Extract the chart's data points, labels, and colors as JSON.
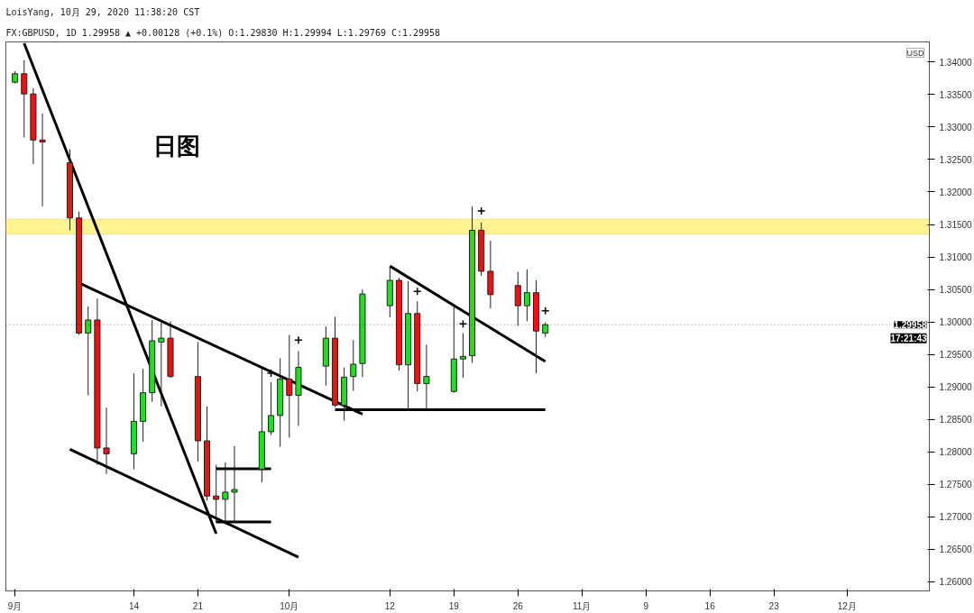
{
  "chart_data": {
    "type": "candlestick",
    "title": "LoisYang, 10月 29, 2020 11:38:20 CST",
    "subtitle": "FX:GBPUSD, 1D 1.29958 ▲ +0.00128 (+0.1%) O:1.29830 H:1.29994 L:1.29769 C:1.29958",
    "annotations": [
      "日图",
      "USD",
      "17:21:43"
    ],
    "x": [
      "2020-09-01",
      "2020-09-02",
      "2020-09-03",
      "2020-09-04",
      "2020-09-07",
      "2020-09-08",
      "2020-09-09",
      "2020-09-10",
      "2020-09-11",
      "2020-09-14",
      "2020-09-15",
      "2020-09-16",
      "2020-09-17",
      "2020-09-18",
      "2020-09-21",
      "2020-09-22",
      "2020-09-23",
      "2020-09-24",
      "2020-09-25",
      "2020-09-28",
      "2020-09-29",
      "2020-09-30",
      "2020-10-01",
      "2020-10-02",
      "2020-10-05",
      "2020-10-06",
      "2020-10-07",
      "2020-10-08",
      "2020-10-09",
      "2020-10-12",
      "2020-10-13",
      "2020-10-14",
      "2020-10-15",
      "2020-10-16",
      "2020-10-19",
      "2020-10-20",
      "2020-10-21",
      "2020-10-22",
      "2020-10-23",
      "2020-10-26",
      "2020-10-27",
      "2020-10-28",
      "2020-10-29"
    ],
    "ohlc": [
      [
        1.3369,
        1.3386,
        1.3367,
        1.3382
      ],
      [
        1.3382,
        1.3403,
        1.3284,
        1.3351
      ],
      [
        1.3351,
        1.336,
        1.3243,
        1.328
      ],
      [
        1.328,
        1.3321,
        1.3178,
        1.3277
      ],
      [
        1.3245,
        1.3266,
        1.3141,
        1.316
      ],
      [
        1.316,
        1.317,
        1.298,
        1.2983
      ],
      [
        1.2983,
        1.3024,
        1.2887,
        1.3003
      ],
      [
        1.3003,
        1.3036,
        1.278,
        1.2806
      ],
      [
        1.2806,
        1.2868,
        1.2766,
        1.2797
      ],
      [
        1.2797,
        1.2921,
        1.2773,
        1.2847
      ],
      [
        1.2847,
        1.2928,
        1.2816,
        1.2891
      ],
      [
        1.2891,
        1.3003,
        1.2877,
        1.2971
      ],
      [
        1.2969,
        1.2999,
        1.287,
        1.2975
      ],
      [
        1.2975,
        1.3001,
        1.2914,
        1.2916
      ],
      [
        1.2916,
        1.2969,
        1.2785,
        1.2817
      ],
      [
        1.2817,
        1.287,
        1.2725,
        1.2732
      ],
      [
        1.2732,
        1.278,
        1.2691,
        1.2727
      ],
      [
        1.2727,
        1.2784,
        1.2689,
        1.2738
      ],
      [
        1.2738,
        1.2809,
        1.2691,
        1.2742
      ],
      [
        1.2773,
        1.2932,
        1.2753,
        1.2831
      ],
      [
        1.2831,
        1.2907,
        1.2826,
        1.2856
      ],
      [
        1.2856,
        1.2944,
        1.2808,
        1.2912
      ],
      [
        1.2912,
        1.298,
        1.2822,
        1.2887
      ],
      [
        1.2887,
        1.2955,
        1.284,
        1.293
      ],
      [
        1.2932,
        1.2993,
        1.2902,
        1.2975
      ],
      [
        1.2975,
        1.3008,
        1.2869,
        1.2872
      ],
      [
        1.2872,
        1.293,
        1.2848,
        1.2915
      ],
      [
        1.2916,
        1.2972,
        1.2894,
        1.2935
      ],
      [
        1.2936,
        1.305,
        1.2915,
        1.3043
      ],
      [
        1.3025,
        1.3085,
        1.3007,
        1.3064
      ],
      [
        1.3064,
        1.3068,
        1.2925,
        1.2934
      ],
      [
        1.2934,
        1.3063,
        1.2865,
        1.3013
      ],
      [
        1.3013,
        1.3032,
        1.2893,
        1.2905
      ],
      [
        1.2905,
        1.2965,
        1.2865,
        1.2916
      ],
      [
        1.2893,
        1.3027,
        1.2891,
        1.2943
      ],
      [
        1.2943,
        1.2983,
        1.2914,
        1.2947
      ],
      [
        1.2948,
        1.3178,
        1.2937,
        1.3141
      ],
      [
        1.3141,
        1.3153,
        1.3071,
        1.3078
      ],
      [
        1.3078,
        1.3125,
        1.3021,
        1.3042
      ],
      [
        1.3056,
        1.3077,
        1.2994,
        1.3025
      ],
      [
        1.3025,
        1.3081,
        1.3001,
        1.3045
      ],
      [
        1.3045,
        1.3064,
        1.2921,
        1.2986
      ],
      [
        1.2983,
        1.29994,
        1.29769,
        1.29958
      ]
    ],
    "colors": [
      "#22dd22",
      "#ee1111",
      "#ee1111",
      "#ee1111",
      "#ee1111",
      "#ee1111",
      "#22dd22",
      "#ee1111",
      "#ee1111",
      "#22dd22",
      "#22dd22",
      "#22dd22",
      "#22dd22",
      "#ee1111",
      "#ee1111",
      "#ee1111",
      "#ee1111",
      "#22dd22",
      "#22dd22",
      "#22dd22",
      "#22dd22",
      "#22dd22",
      "#ee1111",
      "#22dd22",
      "#22dd22",
      "#ee1111",
      "#22dd22",
      "#22dd22",
      "#22dd22",
      "#22dd22",
      "#ee1111",
      "#22dd22",
      "#ee1111",
      "#22dd22",
      "#22dd22",
      "#22dd22",
      "#22dd22",
      "#ee1111",
      "#ee1111",
      "#ee1111",
      "#22dd22",
      "#ee1111",
      "#22dd22"
    ],
    "series": [
      {
        "type": "line",
        "color": "#000000",
        "x": [
          "2020-09-02",
          "2020-09-23"
        ],
        "values": [
          1.3429,
          1.2674
        ]
      },
      {
        "type": "line",
        "color": "#000000",
        "x": [
          "2020-09-08",
          "2020-10-09"
        ],
        "values": [
          1.306,
          1.2858
        ]
      },
      {
        "type": "line",
        "color": "#000000",
        "x": [
          "2020-09-07",
          "2020-10-02"
        ],
        "values": [
          1.2804,
          1.2638
        ]
      },
      {
        "type": "line",
        "color": "#000000",
        "x": [
          "2020-10-12",
          "2020-10-29"
        ],
        "values": [
          1.3086,
          1.2939
        ]
      },
      {
        "type": "line",
        "color": "#000000",
        "x": [
          "2020-10-06",
          "2020-10-29"
        ],
        "values": [
          1.2865,
          1.2865
        ]
      },
      {
        "type": "line",
        "color": "#000000",
        "x": [
          "2020-09-23",
          "2020-09-29"
        ],
        "values": [
          1.2774,
          1.2774
        ]
      },
      {
        "type": "line",
        "color": "#000000",
        "x": [
          "2020-09-23",
          "2020-09-29"
        ],
        "values": [
          1.2692,
          1.2692
        ]
      },
      {
        "type": "scatter",
        "color": "#000000",
        "marker": "cross",
        "x": [
          "2020-09-29",
          "2020-10-02",
          "2020-10-15",
          "2020-10-20",
          "2020-10-22",
          "2020-10-29"
        ],
        "values": [
          1.2921,
          1.2972,
          1.3047,
          1.2997,
          1.3171,
          1.3017
        ]
      }
    ],
    "bands": [
      {
        "axis": "y",
        "from": 1.3135,
        "to": 1.3158,
        "color": "#fff176"
      }
    ],
    "ref_lines": [
      {
        "axis": "y",
        "value": 1.29958,
        "label": "1.29958",
        "color": "#000000"
      }
    ],
    "xlim": [
      "2020-08-31",
      "2020-12-10"
    ],
    "xticks": [
      {
        "value": "2020-09-01",
        "label": "9月"
      },
      {
        "value": "2020-09-14",
        "label": "14"
      },
      {
        "value": "2020-09-21",
        "label": "21"
      },
      {
        "value": "2020-10-01",
        "label": "10月"
      },
      {
        "value": "2020-10-12",
        "label": "12"
      },
      {
        "value": "2020-10-19",
        "label": "19"
      },
      {
        "value": "2020-10-26",
        "label": "26"
      },
      {
        "value": "2020-11-02",
        "label": "11月"
      },
      {
        "value": "2020-11-09",
        "label": "9"
      },
      {
        "value": "2020-11-16",
        "label": "16"
      },
      {
        "value": "2020-11-23",
        "label": "23"
      },
      {
        "value": "2020-12-01",
        "label": "12月"
      }
    ],
    "ylim": [
      1.2586,
      1.3431
    ],
    "yticks": [
      {
        "value": 1.26,
        "label": "1.26000"
      },
      {
        "value": 1.265,
        "label": "1.26500"
      },
      {
        "value": 1.27,
        "label": "1.27000"
      },
      {
        "value": 1.275,
        "label": "1.27500"
      },
      {
        "value": 1.28,
        "label": "1.28000"
      },
      {
        "value": 1.285,
        "label": "1.28500"
      },
      {
        "value": 1.29,
        "label": "1.29000"
      },
      {
        "value": 1.295,
        "label": "1.29500"
      },
      {
        "value": 1.3,
        "label": "1.30000"
      },
      {
        "value": 1.305,
        "label": "1.30500"
      },
      {
        "value": 1.31,
        "label": "1.31000"
      },
      {
        "value": 1.315,
        "label": "1.31500"
      },
      {
        "value": 1.32,
        "label": "1.32000"
      },
      {
        "value": 1.325,
        "label": "1.32500"
      },
      {
        "value": 1.33,
        "label": "1.33000"
      },
      {
        "value": 1.335,
        "label": "1.33500"
      },
      {
        "value": 1.34,
        "label": "1.34000"
      }
    ]
  }
}
